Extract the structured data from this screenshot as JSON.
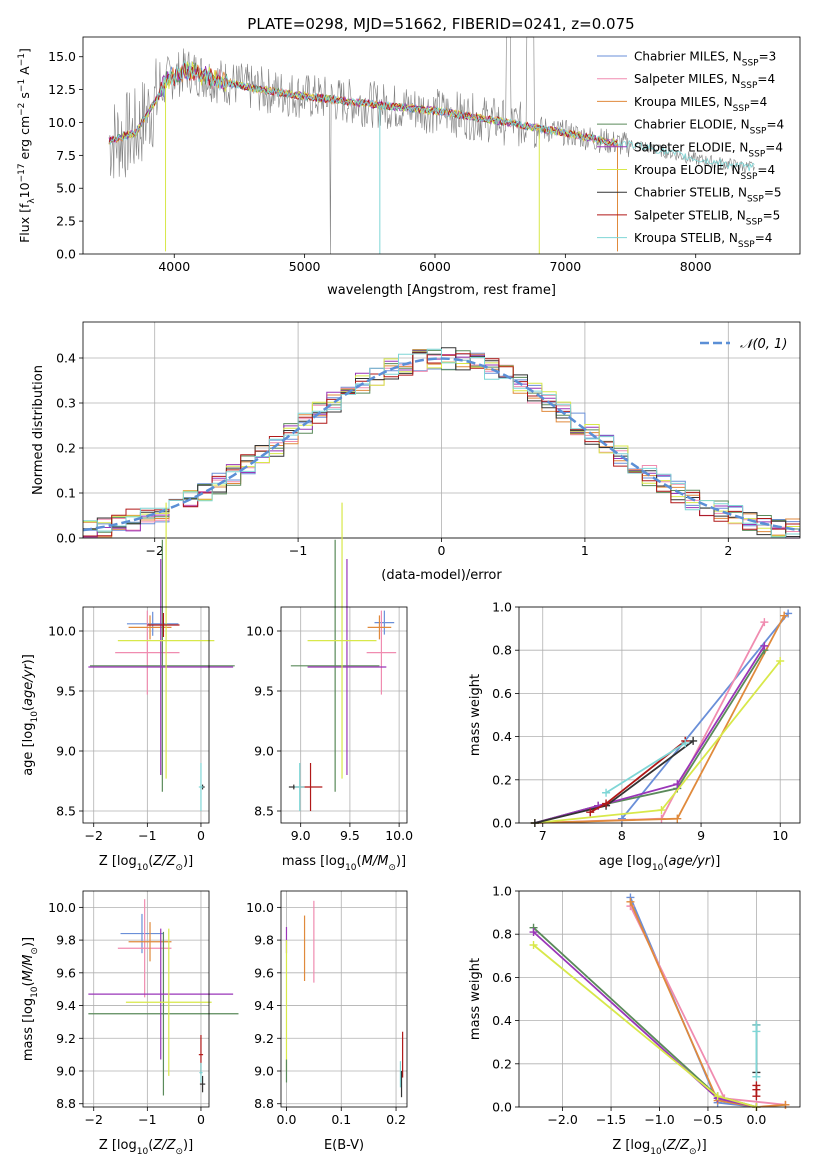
{
  "figure": {
    "title": "PLATE=0298, MJD=51662, FIBERID=0241, z=0.075"
  },
  "colors": {
    "Chabrier MILES": "#6a8fd8",
    "Salpeter MILES": "#f08cb0",
    "Kroupa MILES": "#e08a3c",
    "Chabrier ELODIE": "#5a8a5a",
    "Salpeter ELODIE": "#9a36b8",
    "Kroupa ELODIE": "#d8e84a",
    "Chabrier STELIB": "#333333",
    "Salpeter STELIB": "#b01818",
    "Kroupa STELIB": "#7fd6d6",
    "data": "#808080",
    "gauss": "#5b8fd6"
  },
  "chart_data": [
    {
      "id": "spectrum",
      "type": "line",
      "xlabel": "wavelength [Angstrom, rest frame]",
      "ylabel": "Flux [fλ10⁻¹⁷ erg cm⁻² s⁻¹ A⁻¹]",
      "xlim": [
        3300,
        8800
      ],
      "ylim": [
        0,
        16.5
      ],
      "xticks": [
        "4000",
        "5000",
        "6000",
        "7000",
        "8000"
      ],
      "yticks": [
        "0.0",
        "2.5",
        "5.0",
        "7.5",
        "10.0",
        "12.5",
        "15.0"
      ],
      "legend_position": "upper-right",
      "legend": [
        {
          "label": "Chabrier MILES, N",
          "sub": "SSP",
          "suffix": "=3"
        },
        {
          "label": "Salpeter MILES, N",
          "sub": "SSP",
          "suffix": "=4"
        },
        {
          "label": "Kroupa MILES, N",
          "sub": "SSP",
          "suffix": "=4"
        },
        {
          "label": "Chabrier ELODIE, N",
          "sub": "SSP",
          "suffix": "=4"
        },
        {
          "label": "Salpeter ELODIE, N",
          "sub": "SSP",
          "suffix": "=4"
        },
        {
          "label": "Kroupa ELODIE, N",
          "sub": "SSP",
          "suffix": "=4"
        },
        {
          "label": "Chabrier STELIB, N",
          "sub": "SSP",
          "suffix": "=5"
        },
        {
          "label": "Salpeter STELIB, N",
          "sub": "SSP",
          "suffix": "=5"
        },
        {
          "label": "Kroupa STELIB, N",
          "sub": "SSP",
          "suffix": "=4"
        }
      ],
      "data_range": [
        3500,
        8450
      ],
      "model_curve": {
        "x": [
          3500,
          3700,
          3850,
          3950,
          4100,
          4300,
          4600,
          5000,
          5500,
          6000,
          6500,
          7000,
          7400,
          7600,
          8000,
          8400
        ],
        "y": [
          8.6,
          9.2,
          11.5,
          13.3,
          14.0,
          13.3,
          12.6,
          12.0,
          11.4,
          10.9,
          10.1,
          9.2,
          8.4,
          8.2,
          7.2,
          6.6
        ]
      },
      "model_colors": [
        "#6a8fd8",
        "#f08cb0",
        "#e08a3c",
        "#5a8a5a",
        "#9a36b8",
        "#d8e84a",
        "#b01818",
        "#7fd6d6"
      ],
      "model_ranges": [
        [
          3500,
          7400
        ],
        [
          3500,
          7400
        ],
        [
          3500,
          7400
        ],
        [
          3500,
          7400
        ],
        [
          3500,
          7400
        ],
        [
          3500,
          7400
        ],
        [
          3500,
          7400
        ],
        [
          3500,
          8450
        ]
      ],
      "dips": [
        {
          "x": 3933,
          "y": 0.2,
          "model": 5
        },
        {
          "x": 5577,
          "y": 0.0,
          "model": 7
        },
        {
          "x": 6800,
          "y": 0.0,
          "model": 5
        },
        {
          "x": 7400,
          "y": 0.2,
          "model": 2
        }
      ]
    },
    {
      "id": "residuals",
      "type": "line",
      "xlabel": "(data-model)/error",
      "ylabel": "Normed distribution",
      "xlim": [
        -2.5,
        2.5
      ],
      "ylim": [
        0,
        0.48
      ],
      "xticks": [
        "−2",
        "−1",
        "0",
        "1",
        "2"
      ],
      "xtickvals": [
        -2,
        -1,
        0,
        1,
        2
      ],
      "yticks": [
        "0.0",
        "0.1",
        "0.2",
        "0.3",
        "0.4"
      ],
      "ytickvals": [
        0,
        0.1,
        0.2,
        0.3,
        0.4
      ],
      "legend": "𝒩(0, 1)",
      "series_colors": [
        "#6a8fd8",
        "#f08cb0",
        "#e08a3c",
        "#5a8a5a",
        "#9a36b8",
        "#d8e84a",
        "#333333",
        "#b01818",
        "#7fd6d6"
      ],
      "bin_width": 0.1,
      "bin_start": -2.5,
      "bin_count": 50
    },
    {
      "id": "age_Z",
      "type": "scatter",
      "xlabel": "Z [log10(Z/Z⊙)]",
      "ylabel": "age  [log10(age/yr)]",
      "xlim": [
        -2.2,
        0.15
      ],
      "ylim": [
        8.4,
        10.2
      ],
      "xticks": [
        "−2",
        "−1",
        "0"
      ],
      "xtickvals": [
        -2,
        -1,
        0
      ],
      "yticks": [
        "8.5",
        "9.0",
        "9.5",
        "10.0"
      ],
      "ytickvals": [
        8.5,
        9.0,
        9.5,
        10.0
      ],
      "points": [
        {
          "c": 0,
          "x": -0.9,
          "y": 10.06,
          "xerr": 0.48,
          "yerr": 0.1
        },
        {
          "c": 1,
          "x": -1.0,
          "y": 9.82,
          "xerr": 0.6,
          "yerr": 0.35
        },
        {
          "c": 2,
          "x": -0.95,
          "y": 10.03,
          "xerr": 0.4,
          "yerr": 0.1
        },
        {
          "c": 3,
          "x": -0.72,
          "y": 9.71,
          "xerr": 1.35,
          "yerr": 1.05
        },
        {
          "c": 4,
          "x": -0.75,
          "y": 9.7,
          "xerr": 1.35,
          "yerr": 0.9
        },
        {
          "c": 5,
          "x": -0.65,
          "y": 9.92,
          "xerr": 0.9,
          "yerr": 1.15
        },
        {
          "c": 6,
          "x": 0.03,
          "y": 8.7,
          "xerr": 0.04,
          "yerr": 0.02
        },
        {
          "c": 7,
          "x": -0.7,
          "y": 10.05,
          "xerr": 0.3,
          "yerr": 0.1
        },
        {
          "c": 8,
          "x": 0.0,
          "y": 8.7,
          "xerr": 0.04,
          "yerr": 0.2
        }
      ]
    },
    {
      "id": "age_mass",
      "type": "scatter",
      "xlabel": "mass [log10(M/M⊙)]",
      "ylabel": "",
      "xlim": [
        8.8,
        10.08
      ],
      "ylim": [
        8.4,
        10.2
      ],
      "xticks": [
        "9.0",
        "9.5",
        "10.0"
      ],
      "xtickvals": [
        9.0,
        9.5,
        10.0
      ],
      "yticks": [
        "8.5",
        "9.0",
        "9.5",
        "10.0"
      ],
      "ytickvals": [
        8.5,
        9.0,
        9.5,
        10.0
      ],
      "points": [
        {
          "c": 0,
          "x": 9.85,
          "y": 10.07,
          "xerr": 0.1,
          "yerr": 0.1
        },
        {
          "c": 1,
          "x": 9.82,
          "y": 9.82,
          "xerr": 0.15,
          "yerr": 0.35
        },
        {
          "c": 2,
          "x": 9.8,
          "y": 10.03,
          "xerr": 0.12,
          "yerr": 0.1
        },
        {
          "c": 3,
          "x": 9.35,
          "y": 9.71,
          "xerr": 0.45,
          "yerr": 1.05
        },
        {
          "c": 4,
          "x": 9.47,
          "y": 9.7,
          "xerr": 0.4,
          "yerr": 0.9
        },
        {
          "c": 5,
          "x": 9.42,
          "y": 9.92,
          "xerr": 0.35,
          "yerr": 1.15
        },
        {
          "c": 6,
          "x": 8.93,
          "y": 8.7,
          "xerr": 0.05,
          "yerr": 0.02
        },
        {
          "c": 7,
          "x": 9.1,
          "y": 8.7,
          "xerr": 0.12,
          "yerr": 0.2
        },
        {
          "c": 8,
          "x": 8.99,
          "y": 8.7,
          "xerr": 0.05,
          "yerr": 0.2
        }
      ]
    },
    {
      "id": "weight_age",
      "type": "line",
      "xlabel": "age  [log10(age/yr)]",
      "ylabel": "mass weight",
      "xlim": [
        6.7,
        10.25
      ],
      "ylim": [
        0,
        1
      ],
      "xticks": [
        "7",
        "8",
        "9",
        "10"
      ],
      "xtickvals": [
        7,
        8,
        9,
        10
      ],
      "yticks": [
        "0.0",
        "0.2",
        "0.4",
        "0.6",
        "0.8",
        "1.0"
      ],
      "ytickvals": [
        0,
        0.2,
        0.4,
        0.6,
        0.8,
        1.0
      ],
      "series": [
        {
          "c": 0,
          "x": [
            8.0,
            10.1
          ],
          "y": [
            0.02,
            0.97
          ]
        },
        {
          "c": 1,
          "x": [
            6.9,
            8.5,
            9.8
          ],
          "y": [
            0.0,
            0.02,
            0.93
          ]
        },
        {
          "c": 2,
          "x": [
            6.9,
            8.7,
            10.05
          ],
          "y": [
            0.0,
            0.02,
            0.96
          ]
        },
        {
          "c": 3,
          "x": [
            6.9,
            7.7,
            8.7,
            9.8
          ],
          "y": [
            0.0,
            0.08,
            0.16,
            0.8
          ]
        },
        {
          "c": 4,
          "x": [
            6.9,
            7.7,
            8.7,
            9.8
          ],
          "y": [
            0.0,
            0.08,
            0.18,
            0.82
          ]
        },
        {
          "c": 5,
          "x": [
            6.9,
            8.5,
            10.0
          ],
          "y": [
            0.0,
            0.06,
            0.75
          ]
        },
        {
          "c": 6,
          "x": [
            6.9,
            7.8,
            8.9
          ],
          "y": [
            0.0,
            0.08,
            0.38
          ]
        },
        {
          "c": 7,
          "x": [
            7.6,
            7.8,
            8.8
          ],
          "y": [
            0.05,
            0.09,
            0.38
          ]
        },
        {
          "c": 8,
          "x": [
            7.8,
            8.8
          ],
          "y": [
            0.14,
            0.37
          ]
        }
      ]
    },
    {
      "id": "mass_Z",
      "type": "scatter",
      "xlabel": "Z [log10(Z/Z⊙)]",
      "ylabel": "mass [log10(M/M⊙)]",
      "xlim": [
        -2.2,
        0.15
      ],
      "ylim": [
        8.78,
        10.1
      ],
      "xticks": [
        "−2",
        "−1",
        "0"
      ],
      "xtickvals": [
        -2,
        -1,
        0
      ],
      "yticks": [
        "8.8",
        "9.0",
        "9.2",
        "9.4",
        "9.6",
        "9.8",
        "10.0"
      ],
      "ytickvals": [
        8.8,
        9.0,
        9.2,
        9.4,
        9.6,
        9.8,
        10.0
      ],
      "points": [
        {
          "c": 0,
          "x": -1.1,
          "y": 9.84,
          "xerr": 0.4,
          "yerr": 0.12
        },
        {
          "c": 1,
          "x": -1.05,
          "y": 9.75,
          "xerr": 0.5,
          "yerr": 0.3
        },
        {
          "c": 2,
          "x": -0.95,
          "y": 9.79,
          "xerr": 0.4,
          "yerr": 0.12
        },
        {
          "c": 3,
          "x": -0.7,
          "y": 9.35,
          "xerr": 1.4,
          "yerr": 0.5
        },
        {
          "c": 4,
          "x": -0.75,
          "y": 9.47,
          "xerr": 1.35,
          "yerr": 0.4
        },
        {
          "c": 5,
          "x": -0.6,
          "y": 9.42,
          "xerr": 0.8,
          "yerr": 0.45
        },
        {
          "c": 6,
          "x": 0.03,
          "y": 8.92,
          "xerr": 0.05,
          "yerr": 0.05
        },
        {
          "c": 7,
          "x": 0.0,
          "y": 9.1,
          "xerr": 0.04,
          "yerr": 0.12
        },
        {
          "c": 8,
          "x": 0.0,
          "y": 8.99,
          "xerr": 0.03,
          "yerr": 0.06
        }
      ]
    },
    {
      "id": "mass_ebv",
      "type": "scatter",
      "xlabel": "E(B-V)",
      "ylabel": "",
      "xlim": [
        -0.01,
        0.22
      ],
      "ylim": [
        8.78,
        10.1
      ],
      "xticks": [
        "0.0",
        "0.1",
        "0.2"
      ],
      "xtickvals": [
        0.0,
        0.1,
        0.2
      ],
      "yticks": [
        "8.8",
        "9.0",
        "9.2",
        "9.4",
        "9.6",
        "9.8",
        "10.0"
      ],
      "ytickvals": [
        8.8,
        9.0,
        9.2,
        9.4,
        9.6,
        9.8,
        10.0
      ],
      "points": [
        {
          "c": 4,
          "x": 0.0,
          "y": 9.8,
          "xerr": 0,
          "yerr": 0.08
        },
        {
          "c": 5,
          "x": 0.0,
          "y": 9.4,
          "xerr": 0,
          "yerr": 0.4
        },
        {
          "c": 3,
          "x": 0.0,
          "y": 9.0,
          "xerr": 0,
          "yerr": 0.07
        },
        {
          "c": 2,
          "x": 0.033,
          "y": 9.75,
          "xerr": 0,
          "yerr": 0.2
        },
        {
          "c": 1,
          "x": 0.05,
          "y": 9.79,
          "xerr": 0,
          "yerr": 0.25
        },
        {
          "c": 7,
          "x": 0.212,
          "y": 9.1,
          "xerr": 0,
          "yerr": 0.14
        },
        {
          "c": 8,
          "x": 0.208,
          "y": 8.98,
          "xerr": 0,
          "yerr": 0.08
        },
        {
          "c": 6,
          "x": 0.21,
          "y": 8.92,
          "xerr": 0,
          "yerr": 0.08
        }
      ]
    },
    {
      "id": "weight_Z",
      "type": "line",
      "xlabel": "Z [log10(Z/Z⊙)]",
      "ylabel": "mass weight",
      "xlim": [
        -2.45,
        0.45
      ],
      "ylim": [
        0,
        1
      ],
      "xticks": [
        "−2.0",
        "−1.5",
        "−1.0",
        "−0.5",
        "0.0"
      ],
      "xtickvals": [
        -2.0,
        -1.5,
        -1.0,
        -0.5,
        0.0
      ],
      "yticks": [
        "0.0",
        "0.2",
        "0.4",
        "0.6",
        "0.8",
        "1.0"
      ],
      "ytickvals": [
        0,
        0.2,
        0.4,
        0.6,
        0.8,
        1.0
      ],
      "series": [
        {
          "c": 0,
          "x": [
            -1.3,
            -0.4,
            0.0
          ],
          "y": [
            0.97,
            0.02,
            0.0
          ]
        },
        {
          "c": 1,
          "x": [
            -1.3,
            -0.33,
            0.3
          ],
          "y": [
            0.93,
            0.04,
            0.01
          ]
        },
        {
          "c": 2,
          "x": [
            -1.3,
            -0.4,
            0.0,
            0.3
          ],
          "y": [
            0.95,
            0.03,
            0.0,
            0.01
          ]
        },
        {
          "c": 3,
          "x": [
            -2.3,
            -0.4,
            0.0
          ],
          "y": [
            0.83,
            0.05,
            0.0
          ]
        },
        {
          "c": 4,
          "x": [
            -2.3,
            -0.4,
            0.0
          ],
          "y": [
            0.81,
            0.04,
            0.0
          ]
        },
        {
          "c": 5,
          "x": [
            -2.3,
            -0.4,
            0.0
          ],
          "y": [
            0.75,
            0.05,
            0.0
          ]
        },
        {
          "c": 6,
          "x": [
            0.0,
            0.0
          ],
          "y": [
            0.16,
            0.38
          ]
        },
        {
          "c": 7,
          "x": [
            0.0,
            0.0,
            0.0
          ],
          "y": [
            0.05,
            0.08,
            0.1
          ]
        },
        {
          "c": 8,
          "x": [
            0.0,
            0.0,
            0.0
          ],
          "y": [
            0.14,
            0.35,
            0.38
          ]
        }
      ]
    }
  ]
}
